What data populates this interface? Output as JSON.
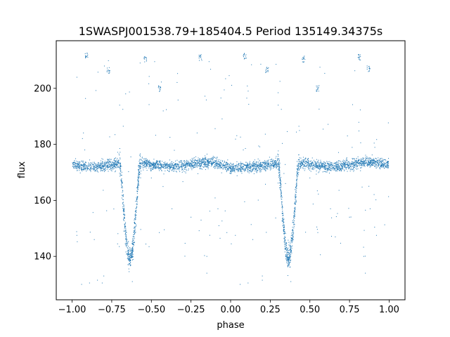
{
  "chart_data": {
    "type": "scatter",
    "title": "1SWASPJ001538.79+185404.5 Period 135149.34375s",
    "xlabel": "phase",
    "ylabel": "flux",
    "xlim": [
      -1.1,
      1.1
    ],
    "ylim": [
      124.5,
      217
    ],
    "xticks": [
      -1.0,
      -0.75,
      -0.5,
      -0.25,
      0.0,
      0.25,
      0.5,
      0.75,
      1.0
    ],
    "xtick_labels": [
      "−1.00",
      "−0.75",
      "−0.50",
      "−0.25",
      "0.00",
      "0.25",
      "0.50",
      "0.75",
      "1.00"
    ],
    "yticks": [
      140,
      160,
      180,
      200
    ],
    "ytick_labels": [
      "140",
      "160",
      "180",
      "200"
    ],
    "grid": false,
    "point_color": "#1f77b4",
    "series": [
      {
        "model": "folded eclipsing-binary light curve, period 1.0 in phase",
        "baseline_flux": 172.8,
        "primary_eclipse": {
          "phase": -0.635,
          "min_flux": 138.5
        },
        "primary_eclipse_repeat": {
          "phase": 0.365,
          "min_flux": 138.5
        },
        "secondary_eclipse": {
          "phase": 0.0,
          "min_flux": 171.5
        },
        "outlier_clusters": [
          {
            "phase": -0.91,
            "flux": 211.5
          },
          {
            "phase": -0.77,
            "flux": 206.5
          },
          {
            "phase": -0.54,
            "flux": 210.5
          },
          {
            "phase": -0.45,
            "flux": 200.0
          },
          {
            "phase": -0.19,
            "flux": 211.0
          },
          {
            "phase": 0.09,
            "flux": 211.5
          },
          {
            "phase": 0.23,
            "flux": 206.5
          },
          {
            "phase": 0.46,
            "flux": 210.5
          },
          {
            "phase": 0.55,
            "flux": 200.0
          },
          {
            "phase": 0.81,
            "flux": 211.0
          },
          {
            "phase": 0.87,
            "flux": 207.0
          }
        ],
        "outlier_points": [
          [
            -0.97,
            147.5
          ],
          [
            -0.94,
            130.0
          ],
          [
            -0.89,
            130.5
          ],
          [
            -0.84,
            131.5
          ],
          [
            -0.8,
            133.0
          ],
          [
            -0.81,
            130.5
          ],
          [
            -0.86,
            146.0
          ],
          [
            -0.7,
            194.0
          ],
          [
            -0.68,
            192.5
          ],
          [
            -0.62,
            131.0
          ],
          [
            -0.5,
            168.0
          ],
          [
            -0.45,
            148.5
          ],
          [
            -0.37,
            157.0
          ],
          [
            -0.25,
            154.0
          ],
          [
            -0.15,
            140.0
          ],
          [
            -0.15,
            134.0
          ],
          [
            -0.08,
            157.0
          ],
          [
            0.03,
            147.5
          ],
          [
            0.06,
            130.0
          ],
          [
            0.11,
            130.5
          ],
          [
            0.2,
            131.5
          ],
          [
            0.2,
            133.0
          ],
          [
            0.14,
            146.0
          ],
          [
            0.3,
            194.0
          ],
          [
            0.32,
            192.5
          ],
          [
            0.38,
            131.0
          ],
          [
            0.5,
            168.0
          ],
          [
            0.55,
            148.5
          ],
          [
            0.63,
            157.0
          ],
          [
            0.75,
            154.0
          ],
          [
            0.84,
            140.0
          ],
          [
            0.85,
            134.0
          ],
          [
            0.88,
            157.0
          ],
          [
            0.92,
            147.5
          ],
          [
            -0.92,
            178.0
          ],
          [
            0.08,
            178.0
          ]
        ]
      }
    ]
  }
}
